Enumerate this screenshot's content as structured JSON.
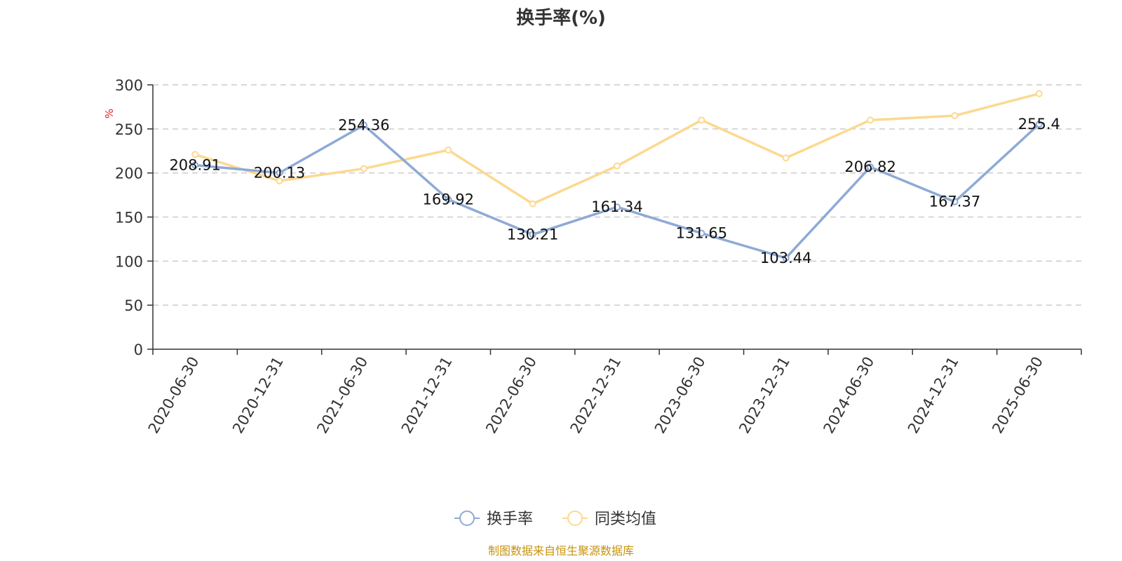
{
  "chart_data": {
    "type": "line",
    "title": "换手率(%)",
    "ylabel": "%",
    "xlabel": "",
    "ylim": [
      0,
      300
    ],
    "yticks": [
      0,
      50,
      100,
      150,
      200,
      250,
      300
    ],
    "grid": true,
    "legend_position": "bottom-center",
    "categories": [
      "2020-06-30",
      "2020-12-31",
      "2021-06-30",
      "2021-12-31",
      "2022-06-30",
      "2022-12-31",
      "2023-06-30",
      "2023-12-31",
      "2024-06-30",
      "2024-12-31",
      "2025-06-30"
    ],
    "series": [
      {
        "name": "换手率",
        "color": "#8eaad6",
        "values": [
          208.91,
          200.13,
          254.36,
          169.92,
          130.21,
          161.34,
          131.65,
          103.44,
          206.82,
          167.37,
          255.4
        ],
        "labels": [
          "208.91",
          "200.13",
          "254.36",
          "169.92",
          "130.21",
          "161.34",
          "131.65",
          "103.44",
          "206.82",
          "167.37",
          "255.4"
        ]
      },
      {
        "name": "同类均值",
        "color": "#fcd990",
        "values": [
          221,
          191,
          205,
          226,
          165,
          208,
          260,
          217,
          260,
          265,
          290
        ]
      }
    ]
  },
  "footer": {
    "source_text": "制图数据来自恒生聚源数据库",
    "color": "#c8920a"
  },
  "colors": {
    "axis": "#333333",
    "grid": "#cccccc",
    "unit": "#e02020"
  }
}
